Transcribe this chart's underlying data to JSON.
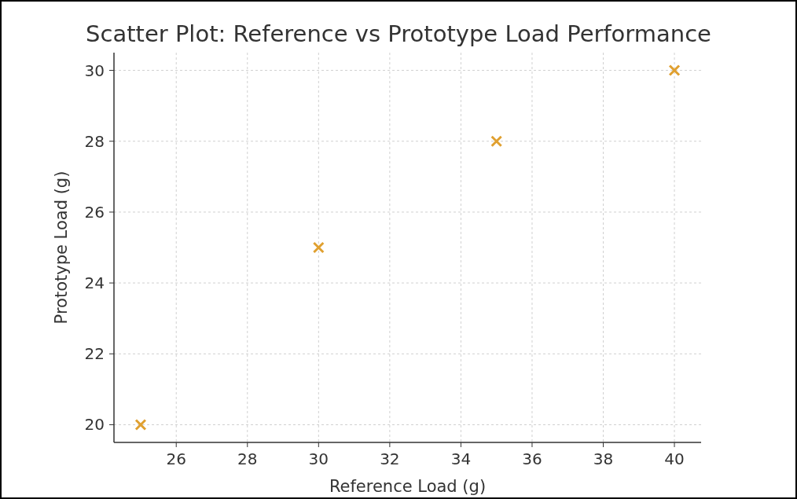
{
  "chart_data": {
    "type": "scatter",
    "title": "Scatter Plot: Reference vs Prototype Load Performance",
    "xlabel": "Reference Load (g)",
    "ylabel": "Prototype Load (g)",
    "x": [
      25,
      30,
      35,
      40
    ],
    "series": [
      {
        "color": "#e0a030",
        "values": [
          20,
          25,
          28,
          30
        ]
      }
    ],
    "xlim": [
      24.25,
      40.75
    ],
    "xticks": [
      26,
      28,
      30,
      32,
      34,
      36,
      38,
      40
    ],
    "ylim": [
      19.5,
      30.5
    ],
    "yticks": [
      20,
      22,
      24,
      26,
      28,
      30
    ],
    "grid": true,
    "marker": "cross"
  }
}
